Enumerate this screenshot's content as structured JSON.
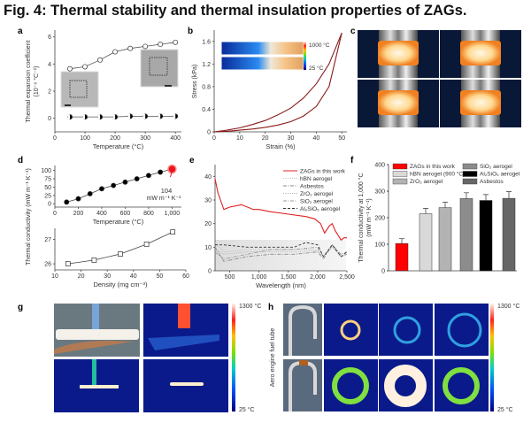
{
  "title": "Fig. 4: Thermal stability and thermal insulation properties of ZAGs.",
  "panels": {
    "a": "a",
    "b": "b",
    "c": "c",
    "d": "d",
    "e": "e",
    "f": "f",
    "g": "g",
    "h": "h"
  },
  "chart_data": [
    {
      "panel": "a",
      "type": "line",
      "xlabel": "Temperature (°C)",
      "ylabel": "Thermal expansion coefficient",
      "ylabel2": "(10⁻⁶ °C⁻¹)",
      "xlim": [
        0,
        420
      ],
      "ylim": [
        -1,
        6.5
      ],
      "xticks": [
        0,
        100,
        200,
        300,
        400
      ],
      "yticks": [
        0,
        2,
        4,
        6
      ],
      "series": [
        {
          "marker": "open-circle",
          "x": [
            50,
            100,
            150,
            200,
            250,
            300,
            350,
            400
          ],
          "y": [
            3.65,
            3.8,
            4.3,
            4.9,
            5.15,
            5.3,
            5.45,
            5.6
          ]
        },
        {
          "marker": "half-filled-circle",
          "x": [
            50,
            100,
            150,
            200,
            250,
            300,
            350,
            400
          ],
          "y": [
            0.1,
            0.1,
            0.1,
            0.1,
            0.15,
            0.15,
            0.15,
            0.15
          ]
        }
      ]
    },
    {
      "panel": "b",
      "type": "line",
      "xlabel": "Strain (%)",
      "ylabel": "Stress (kPa)",
      "xlim": [
        0,
        52
      ],
      "ylim": [
        0,
        1.8
      ],
      "xticks": [
        0,
        10,
        20,
        30,
        40,
        50
      ],
      "yticks": [
        0,
        0.4,
        0.8,
        1.2,
        1.6
      ],
      "series": [
        {
          "x": [
            0,
            5,
            10,
            15,
            20,
            25,
            30,
            35,
            40,
            45,
            50
          ],
          "y": [
            0,
            0.03,
            0.07,
            0.13,
            0.2,
            0.3,
            0.42,
            0.6,
            0.85,
            1.2,
            1.75
          ]
        },
        {
          "x": [
            0,
            5,
            10,
            15,
            20,
            25,
            30,
            35,
            40,
            45,
            50
          ],
          "y": [
            0,
            0.01,
            0.03,
            0.05,
            0.08,
            0.12,
            0.18,
            0.28,
            0.45,
            0.8,
            1.75
          ]
        }
      ],
      "inset_colorbar": {
        "max": "1000 °C",
        "min": "25 °C"
      }
    },
    {
      "panel": "d-top",
      "type": "line",
      "xlabel": "Temperature (°C)",
      "ylabel": "Thermal conductivity (mW m⁻¹ K⁻¹)",
      "xlim": [
        0,
        1080
      ],
      "ylim": [
        -10,
        115
      ],
      "xticks": [
        0,
        200,
        400,
        600,
        800,
        "1,000"
      ],
      "xtick_values": [
        0,
        200,
        400,
        600,
        800,
        1000
      ],
      "yticks": [
        0,
        25,
        50,
        75,
        100
      ],
      "x": [
        100,
        200,
        300,
        400,
        500,
        600,
        700,
        800,
        900,
        1000
      ],
      "y": [
        5,
        15,
        30,
        45,
        55,
        65,
        75,
        85,
        95,
        104
      ],
      "annotation": {
        "value": "104",
        "unit": "mW m⁻¹ K⁻¹",
        "color": "#e8141c"
      }
    },
    {
      "panel": "d-bottom",
      "type": "line",
      "xlabel": "Density (mg cm⁻³)",
      "xlim": [
        10,
        60
      ],
      "ylim": [
        25.75,
        27.45
      ],
      "xticks": [
        10,
        20,
        30,
        40,
        50,
        60
      ],
      "yticks": [
        26,
        27
      ],
      "x": [
        15,
        25,
        35,
        45,
        55
      ],
      "y": [
        26.0,
        26.15,
        26.4,
        26.8,
        27.3
      ]
    },
    {
      "panel": "e",
      "type": "line",
      "xlabel": "Wavelength (nm)",
      "xlim": [
        250,
        2500
      ],
      "ylim": [
        0,
        45
      ],
      "xticks": [
        "500",
        "1,000",
        "1,500",
        "2,000",
        "2,500"
      ],
      "xtick_values": [
        500,
        1000,
        1500,
        2000,
        2500
      ],
      "yticks": [
        0,
        10,
        20,
        30,
        40
      ],
      "legend": "top-right",
      "series": [
        {
          "name": "ZAGs in this work",
          "color": "#e02020",
          "style": "solid",
          "x": [
            250,
            300,
            400,
            500,
            700,
            850,
            900,
            1000,
            1200,
            1500,
            1800,
            1950,
            2050,
            2120,
            2200,
            2250,
            2300,
            2350,
            2400,
            2450,
            2500
          ],
          "y": [
            39,
            33,
            26,
            27,
            28,
            26.5,
            26,
            26,
            25,
            24,
            23,
            22,
            20,
            16,
            19,
            20,
            17,
            15,
            13,
            14,
            14
          ]
        },
        {
          "name": "hBN aerogel",
          "color": "#bbbbbb",
          "style": "dotted",
          "x": [
            250,
            400,
            800,
            1200,
            1600,
            2000,
            2100,
            2250,
            2400,
            2500
          ],
          "y": [
            12,
            8,
            9,
            9,
            9,
            9,
            6,
            10,
            7,
            8
          ]
        },
        {
          "name": "Asbestos",
          "color": "#888888",
          "style": "dashdot",
          "x": [
            250,
            400,
            800,
            1200,
            1600,
            2000,
            2100,
            2250,
            2400,
            2500
          ],
          "y": [
            10,
            4,
            6,
            7,
            7,
            8,
            5,
            11,
            6,
            7
          ]
        },
        {
          "name": "ZrO₂ aerogel",
          "color": "#aaaaaa",
          "style": "dotted",
          "x": [
            250,
            400,
            800,
            1200,
            1600,
            2000,
            2100,
            2250,
            2400,
            2500
          ],
          "y": [
            9,
            7,
            8,
            8,
            8,
            8.5,
            6,
            10,
            6,
            7
          ]
        },
        {
          "name": "SiO₂ aerogel",
          "color": "#999999",
          "style": "dashdot",
          "x": [
            250,
            400,
            800,
            1200,
            1600,
            2000,
            2100,
            2250,
            2400,
            2500
          ],
          "y": [
            8,
            5,
            7,
            9,
            9,
            10,
            6,
            11,
            7,
            8
          ]
        },
        {
          "name": "Al₂SiO₅ aerogel",
          "color": "#333333",
          "style": "dashed",
          "x": [
            250,
            400,
            800,
            1200,
            1600,
            1800,
            2000,
            2100,
            2250,
            2400,
            2500
          ],
          "y": [
            11,
            11,
            10,
            10,
            10,
            12,
            11,
            6,
            11,
            6,
            8
          ]
        }
      ]
    },
    {
      "panel": "f",
      "type": "bar",
      "ylabel": "Thermal conductivity at 1,000 °C",
      "ylabel2": "(mW m⁻¹ K⁻¹)",
      "ylim": [
        0,
        400
      ],
      "yticks": [
        0,
        100,
        200,
        300,
        400
      ],
      "legend": "top",
      "categories": [
        "ZAGs in this work",
        "hBN aerogel (900 °C)",
        "ZrO₂ aerogel",
        "SiO₂ aerogel",
        "Al₂SiO₅ aerogel",
        "Asbestos"
      ],
      "values": [
        103,
        215,
        238,
        272,
        265,
        273
      ],
      "errors": [
        18,
        20,
        20,
        22,
        22,
        25
      ],
      "colors": [
        "#ff0000",
        "#d9d9d9",
        "#b3b3b3",
        "#8c8c8c",
        "#000000",
        "#666666"
      ]
    }
  ],
  "panel_g": {
    "colorbar_max": "1300 °C",
    "colorbar_min": "25 °C"
  },
  "panel_h": {
    "side_label": "Aero engine fuel tube",
    "colorbar_max": "1300 °C",
    "colorbar_min": "25 °C"
  }
}
